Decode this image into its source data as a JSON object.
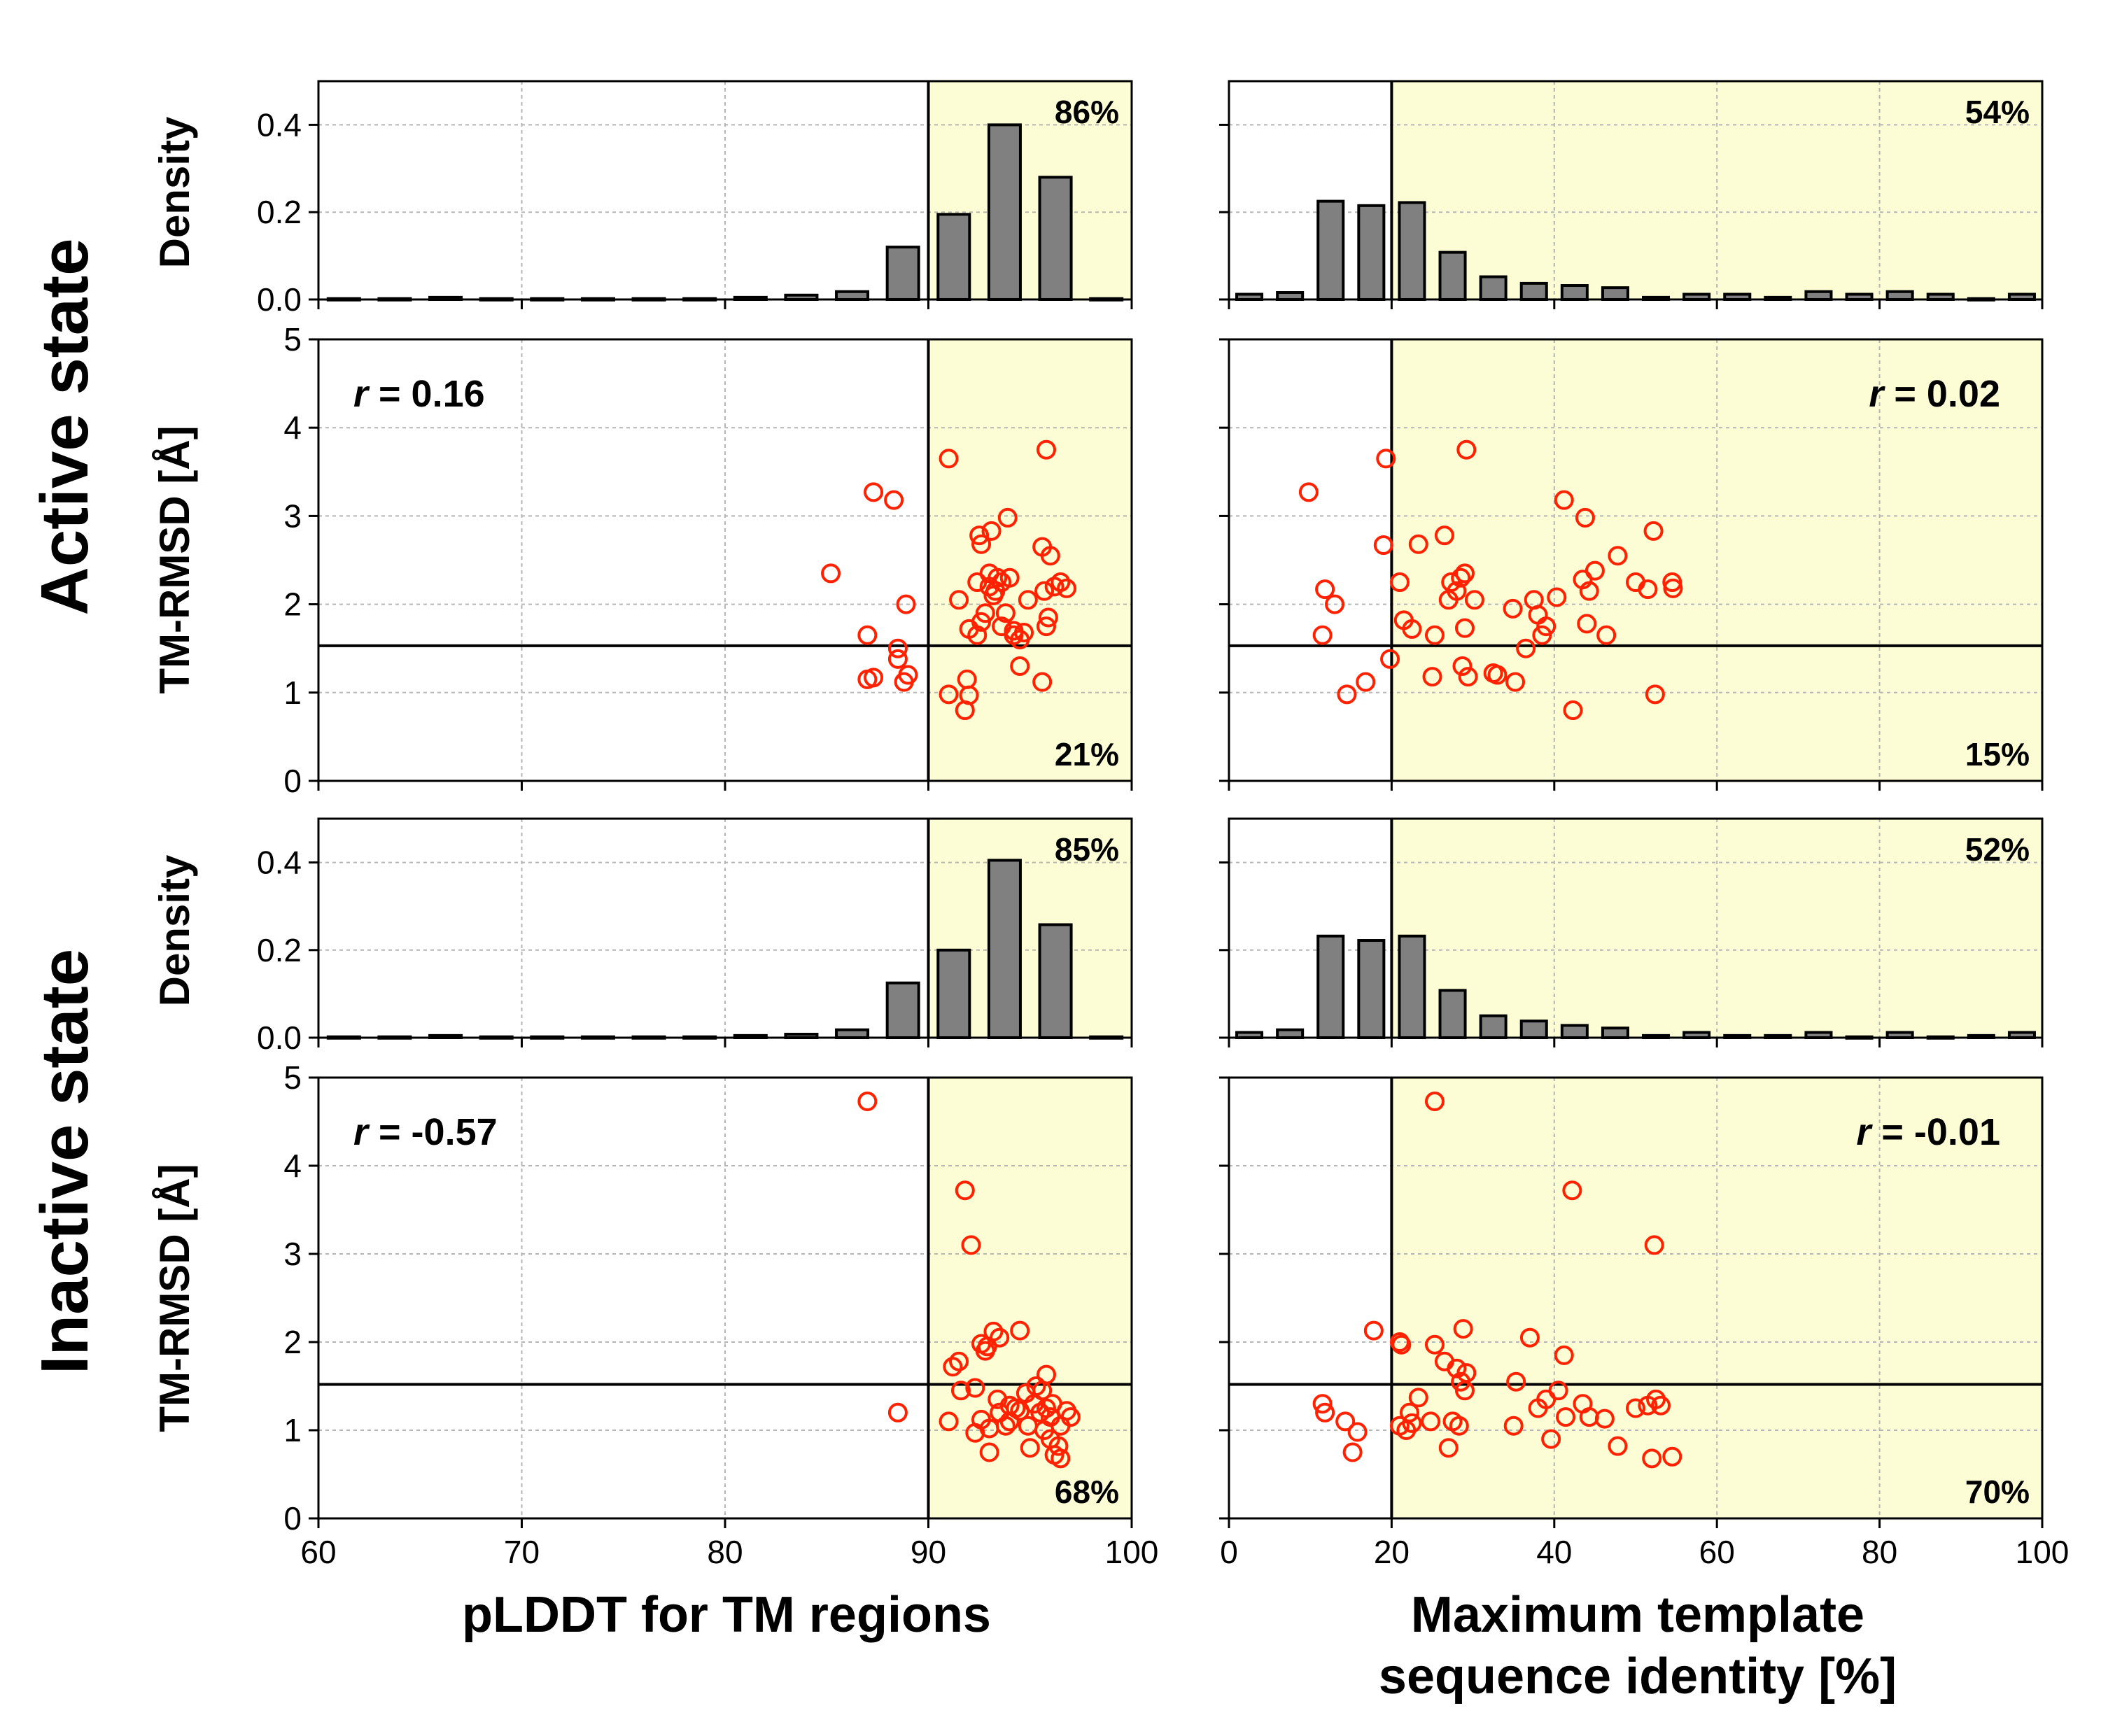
{
  "state_labels": {
    "active": "Active state",
    "inactive": "Inactive state"
  },
  "y_labels": {
    "density": "Density",
    "rmsd": "TM-RMSD [Å]"
  },
  "x_labels": {
    "left": "pLDDT for TM regions",
    "right_line1": "Maximum template",
    "right_line2": "sequence identity [%]"
  },
  "highlight_color": "#fdfdd5",
  "bar_color": "#808080",
  "marker_color": "#ff2200",
  "chart_data": [
    {
      "id": "active-plddt-density",
      "type": "bar",
      "x_range": [
        60,
        100
      ],
      "ylim": [
        0,
        0.5
      ],
      "yticks": [
        0.0,
        0.2,
        0.4
      ],
      "ytick_labels": [
        "0.0",
        "0.2",
        "0.4"
      ],
      "grid": true,
      "threshold_x": 90,
      "highlight_x": [
        90,
        100
      ],
      "bin_centers": [
        61.25,
        63.75,
        66.25,
        68.75,
        71.25,
        73.75,
        76.25,
        78.75,
        81.25,
        83.75,
        86.25,
        88.75,
        91.25,
        93.75,
        96.25,
        98.75
      ],
      "bin_width": 2.5,
      "values": [
        0.002,
        0.002,
        0.005,
        0.002,
        0.002,
        0.002,
        0.002,
        0.002,
        0.005,
        0.01,
        0.018,
        0.12,
        0.195,
        0.4,
        0.28,
        0.002
      ],
      "annotation": "86%"
    },
    {
      "id": "active-plddt-scatter",
      "type": "scatter",
      "x_range": [
        60,
        100
      ],
      "ylim": [
        0,
        5
      ],
      "yticks": [
        0,
        1,
        2,
        3,
        4,
        5
      ],
      "ytick_labels": [
        "0",
        "1",
        "2",
        "3",
        "4",
        "5"
      ],
      "grid": true,
      "threshold_x": 90,
      "threshold_y": 1.53,
      "highlight_x": [
        90,
        100
      ],
      "r_label": "r",
      "r_value": " = 0.16",
      "annotation": "21%",
      "points": [
        [
          85.2,
          2.35
        ],
        [
          87.3,
          3.27
        ],
        [
          88.3,
          3.18
        ],
        [
          87.0,
          1.65
        ],
        [
          87.0,
          1.15
        ],
        [
          87.3,
          1.17
        ],
        [
          88.5,
          1.5
        ],
        [
          88.5,
          1.38
        ],
        [
          88.9,
          2.0
        ],
        [
          88.8,
          1.12
        ],
        [
          89.0,
          1.2
        ],
        [
          91.0,
          3.65
        ],
        [
          95.8,
          3.75
        ],
        [
          91.0,
          0.98
        ],
        [
          91.5,
          2.05
        ],
        [
          91.8,
          0.8
        ],
        [
          92.0,
          0.97
        ],
        [
          91.9,
          1.15
        ],
        [
          92.0,
          1.72
        ],
        [
          92.5,
          2.78
        ],
        [
          92.6,
          2.68
        ],
        [
          92.4,
          2.25
        ],
        [
          92.8,
          1.9
        ],
        [
          92.4,
          1.65
        ],
        [
          92.6,
          1.8
        ],
        [
          93.1,
          2.83
        ],
        [
          93.0,
          2.35
        ],
        [
          93.0,
          2.2
        ],
        [
          93.3,
          2.15
        ],
        [
          93.4,
          2.3
        ],
        [
          93.2,
          2.1
        ],
        [
          93.9,
          2.98
        ],
        [
          93.6,
          2.25
        ],
        [
          93.8,
          1.9
        ],
        [
          93.6,
          1.75
        ],
        [
          94.0,
          2.3
        ],
        [
          94.2,
          1.7
        ],
        [
          94.5,
          1.6
        ],
        [
          94.7,
          1.68
        ],
        [
          94.2,
          1.65
        ],
        [
          94.5,
          1.3
        ],
        [
          94.9,
          2.05
        ],
        [
          95.6,
          2.65
        ],
        [
          96.0,
          2.55
        ],
        [
          96.2,
          2.2
        ],
        [
          96.5,
          2.25
        ],
        [
          96.8,
          2.18
        ],
        [
          95.7,
          2.15
        ],
        [
          95.9,
          1.85
        ],
        [
          95.8,
          1.75
        ],
        [
          95.6,
          1.12
        ]
      ]
    },
    {
      "id": "active-identity-density",
      "type": "bar",
      "x_range": [
        0,
        100
      ],
      "ylim": [
        0,
        0.5
      ],
      "yticks": [
        0.0,
        0.2,
        0.4
      ],
      "ytick_labels": [
        "0.0",
        "0.2",
        "0.4"
      ],
      "grid": true,
      "threshold_x": 20,
      "highlight_x": [
        20,
        100
      ],
      "bin_centers": [
        2.5,
        7.5,
        12.5,
        17.5,
        22.5,
        27.5,
        32.5,
        37.5,
        42.5,
        47.5,
        52.5,
        57.5,
        62.5,
        67.5,
        72.5,
        77.5,
        82.5,
        87.5,
        92.5,
        97.5
      ],
      "bin_width": 5,
      "values": [
        0.012,
        0.016,
        0.225,
        0.215,
        0.222,
        0.108,
        0.052,
        0.037,
        0.032,
        0.027,
        0.005,
        0.012,
        0.012,
        0.005,
        0.018,
        0.012,
        0.018,
        0.012,
        0.002,
        0.012
      ],
      "annotation": "54%"
    },
    {
      "id": "active-identity-scatter",
      "type": "scatter",
      "x_range": [
        0,
        100
      ],
      "ylim": [
        0,
        5
      ],
      "yticks": [
        0,
        1,
        2,
        3,
        4,
        5
      ],
      "ytick_labels": [
        "0",
        "1",
        "2",
        "3",
        "4",
        "5"
      ],
      "grid": true,
      "threshold_x": 20,
      "threshold_y": 1.53,
      "highlight_x": [
        20,
        100
      ],
      "r_label": "r",
      "r_value": " = 0.02",
      "annotation": "15%",
      "points": [
        [
          9.8,
          3.27
        ],
        [
          19.3,
          3.65
        ],
        [
          29.2,
          3.75
        ],
        [
          11.8,
          2.17
        ],
        [
          13.0,
          2.0
        ],
        [
          11.5,
          1.65
        ],
        [
          14.5,
          0.98
        ],
        [
          16.8,
          1.12
        ],
        [
          19.0,
          2.67
        ],
        [
          19.8,
          1.38
        ],
        [
          21.0,
          2.25
        ],
        [
          21.5,
          1.82
        ],
        [
          22.5,
          1.72
        ],
        [
          23.3,
          2.68
        ],
        [
          25.0,
          1.18
        ],
        [
          25.3,
          1.65
        ],
        [
          26.5,
          2.78
        ],
        [
          27.0,
          2.05
        ],
        [
          27.3,
          2.25
        ],
        [
          28.0,
          2.15
        ],
        [
          28.5,
          2.3
        ],
        [
          29.0,
          2.35
        ],
        [
          28.7,
          1.3
        ],
        [
          29.0,
          1.73
        ],
        [
          29.4,
          1.18
        ],
        [
          30.2,
          2.05
        ],
        [
          32.5,
          1.22
        ],
        [
          33.0,
          1.2
        ],
        [
          34.9,
          1.95
        ],
        [
          35.2,
          1.12
        ],
        [
          36.5,
          1.5
        ],
        [
          37.5,
          2.05
        ],
        [
          38.0,
          1.88
        ],
        [
          38.5,
          1.65
        ],
        [
          39.0,
          1.75
        ],
        [
          40.3,
          2.08
        ],
        [
          41.2,
          3.18
        ],
        [
          42.3,
          0.8
        ],
        [
          43.5,
          2.28
        ],
        [
          43.8,
          2.98
        ],
        [
          44.0,
          1.78
        ],
        [
          44.3,
          2.15
        ],
        [
          45.0,
          2.38
        ],
        [
          46.4,
          1.65
        ],
        [
          47.8,
          2.55
        ],
        [
          50.0,
          2.25
        ],
        [
          51.5,
          2.17
        ],
        [
          52.2,
          2.83
        ],
        [
          52.4,
          0.98
        ],
        [
          54.5,
          2.25
        ],
        [
          54.6,
          2.18
        ]
      ]
    },
    {
      "id": "inactive-plddt-density",
      "type": "bar",
      "x_range": [
        60,
        100
      ],
      "ylim": [
        0,
        0.5
      ],
      "yticks": [
        0.0,
        0.2,
        0.4
      ],
      "ytick_labels": [
        "0.0",
        "0.2",
        "0.4"
      ],
      "grid": true,
      "threshold_x": 90,
      "highlight_x": [
        90,
        100
      ],
      "bin_centers": [
        61.25,
        63.75,
        66.25,
        68.75,
        71.25,
        73.75,
        76.25,
        78.75,
        81.25,
        83.75,
        86.25,
        88.75,
        91.25,
        93.75,
        96.25,
        98.75
      ],
      "bin_width": 2.5,
      "values": [
        0.002,
        0.002,
        0.005,
        0.002,
        0.002,
        0.002,
        0.002,
        0.002,
        0.005,
        0.008,
        0.018,
        0.125,
        0.2,
        0.405,
        0.258,
        0.002
      ],
      "annotation": "85%"
    },
    {
      "id": "inactive-plddt-scatter",
      "type": "scatter",
      "x_range": [
        60,
        100
      ],
      "ylim": [
        0,
        5
      ],
      "yticks": [
        0,
        1,
        2,
        3,
        4,
        5
      ],
      "ytick_labels": [
        "0",
        "1",
        "2",
        "3",
        "4",
        "5"
      ],
      "grid": true,
      "threshold_x": 90,
      "threshold_y": 1.52,
      "highlight_x": [
        90,
        100
      ],
      "r_label": "r",
      "r_value": " = -0.57",
      "annotation": "68%",
      "points": [
        [
          87.0,
          4.73
        ],
        [
          88.5,
          1.2
        ],
        [
          91.8,
          3.72
        ],
        [
          92.1,
          3.1
        ],
        [
          91.0,
          1.1
        ],
        [
          91.2,
          1.72
        ],
        [
          91.5,
          1.78
        ],
        [
          91.6,
          1.45
        ],
        [
          92.3,
          1.48
        ],
        [
          92.3,
          0.97
        ],
        [
          92.6,
          1.98
        ],
        [
          92.6,
          1.12
        ],
        [
          92.8,
          1.9
        ],
        [
          92.9,
          1.95
        ],
        [
          93.0,
          1.02
        ],
        [
          93.0,
          0.75
        ],
        [
          93.2,
          2.12
        ],
        [
          93.4,
          1.35
        ],
        [
          93.5,
          2.05
        ],
        [
          93.5,
          1.2
        ],
        [
          93.8,
          1.05
        ],
        [
          94.0,
          1.28
        ],
        [
          94.0,
          1.1
        ],
        [
          94.3,
          1.25
        ],
        [
          94.5,
          2.13
        ],
        [
          94.5,
          1.22
        ],
        [
          94.8,
          1.42
        ],
        [
          94.9,
          1.05
        ],
        [
          95.0,
          0.8
        ],
        [
          95.2,
          1.3
        ],
        [
          95.3,
          1.5
        ],
        [
          95.5,
          1.2
        ],
        [
          95.6,
          1.45
        ],
        [
          95.7,
          1.0
        ],
        [
          95.8,
          1.63
        ],
        [
          95.8,
          1.25
        ],
        [
          96.0,
          0.9
        ],
        [
          96.0,
          1.15
        ],
        [
          96.1,
          1.3
        ],
        [
          96.2,
          0.72
        ],
        [
          96.4,
          0.82
        ],
        [
          96.5,
          0.68
        ],
        [
          96.5,
          1.05
        ],
        [
          96.8,
          1.22
        ],
        [
          97.0,
          1.15
        ]
      ]
    },
    {
      "id": "inactive-identity-density",
      "type": "bar",
      "x_range": [
        0,
        100
      ],
      "ylim": [
        0,
        0.5
      ],
      "yticks": [
        0.0,
        0.2,
        0.4
      ],
      "ytick_labels": [
        "0.0",
        "0.2",
        "0.4"
      ],
      "grid": true,
      "threshold_x": 20,
      "highlight_x": [
        20,
        100
      ],
      "bin_centers": [
        2.5,
        7.5,
        12.5,
        17.5,
        22.5,
        27.5,
        32.5,
        37.5,
        42.5,
        47.5,
        52.5,
        57.5,
        62.5,
        67.5,
        72.5,
        77.5,
        82.5,
        87.5,
        92.5,
        97.5
      ],
      "bin_width": 5,
      "values": [
        0.012,
        0.018,
        0.232,
        0.222,
        0.232,
        0.108,
        0.05,
        0.038,
        0.028,
        0.022,
        0.005,
        0.012,
        0.005,
        0.005,
        0.012,
        0.002,
        0.012,
        0.002,
        0.005,
        0.012
      ],
      "annotation": "52%"
    },
    {
      "id": "inactive-identity-scatter",
      "type": "scatter",
      "x_range": [
        0,
        100
      ],
      "ylim": [
        0,
        5
      ],
      "yticks": [
        0,
        1,
        2,
        3,
        4,
        5
      ],
      "ytick_labels": [
        "0",
        "1",
        "2",
        "3",
        "4",
        "5"
      ],
      "grid": true,
      "threshold_x": 20,
      "threshold_y": 1.52,
      "highlight_x": [
        20,
        100
      ],
      "r_label": "r",
      "r_value": " = -0.01",
      "annotation": "70%",
      "points": [
        [
          25.3,
          4.73
        ],
        [
          42.2,
          3.72
        ],
        [
          52.3,
          3.1
        ],
        [
          11.5,
          1.3
        ],
        [
          11.8,
          1.2
        ],
        [
          14.3,
          1.1
        ],
        [
          15.8,
          0.98
        ],
        [
          15.2,
          0.75
        ],
        [
          17.8,
          2.13
        ],
        [
          21.0,
          2.0
        ],
        [
          21.2,
          1.97
        ],
        [
          21.0,
          1.05
        ],
        [
          21.8,
          1.0
        ],
        [
          22.2,
          1.2
        ],
        [
          22.5,
          1.08
        ],
        [
          23.3,
          1.37
        ],
        [
          24.8,
          1.1
        ],
        [
          25.3,
          1.97
        ],
        [
          26.5,
          1.78
        ],
        [
          27.0,
          0.8
        ],
        [
          27.5,
          1.1
        ],
        [
          28.0,
          1.7
        ],
        [
          28.3,
          1.05
        ],
        [
          28.5,
          1.55
        ],
        [
          29.0,
          1.45
        ],
        [
          28.8,
          2.15
        ],
        [
          29.2,
          1.65
        ],
        [
          35.0,
          1.05
        ],
        [
          35.3,
          1.55
        ],
        [
          37.0,
          2.05
        ],
        [
          38.0,
          1.25
        ],
        [
          39.0,
          1.35
        ],
        [
          39.6,
          0.9
        ],
        [
          40.5,
          1.45
        ],
        [
          41.2,
          1.85
        ],
        [
          41.4,
          1.15
        ],
        [
          43.5,
          1.3
        ],
        [
          44.3,
          1.15
        ],
        [
          46.2,
          1.13
        ],
        [
          47.8,
          0.82
        ],
        [
          50.0,
          1.25
        ],
        [
          51.5,
          1.28
        ],
        [
          52.0,
          0.68
        ],
        [
          52.5,
          1.35
        ],
        [
          53.1,
          1.28
        ],
        [
          54.5,
          0.7
        ]
      ]
    }
  ]
}
